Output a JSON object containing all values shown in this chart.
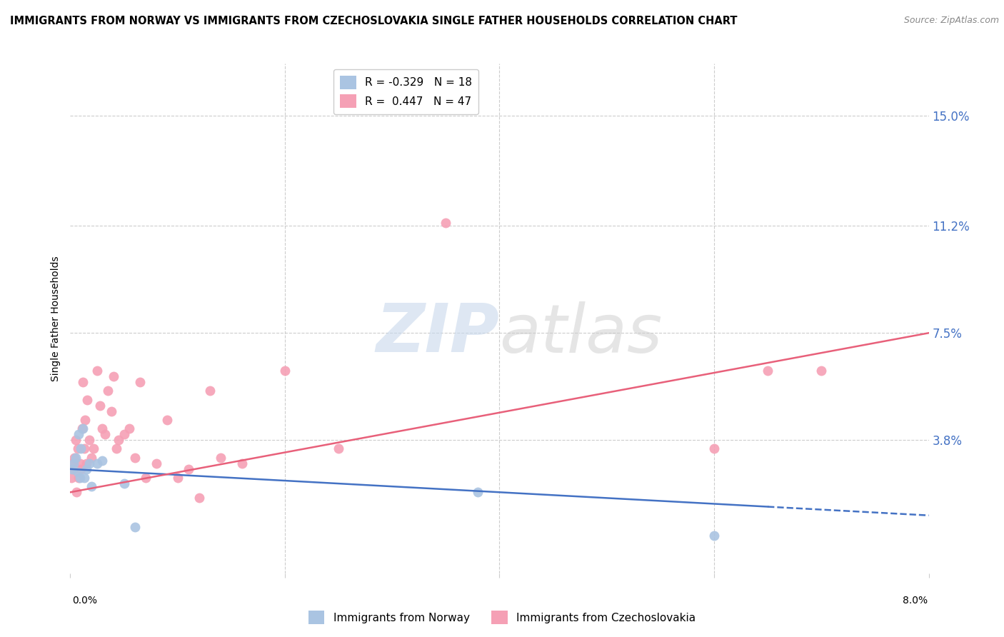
{
  "title": "IMMIGRANTS FROM NORWAY VS IMMIGRANTS FROM CZECHOSLOVAKIA SINGLE FATHER HOUSEHOLDS CORRELATION CHART",
  "source": "Source: ZipAtlas.com",
  "ylabel": "Single Father Households",
  "ytick_labels": [
    "15.0%",
    "11.2%",
    "7.5%",
    "3.8%"
  ],
  "ytick_values": [
    0.15,
    0.112,
    0.075,
    0.038
  ],
  "xlim": [
    0.0,
    0.08
  ],
  "ylim": [
    -0.008,
    0.168
  ],
  "norway_R": -0.329,
  "norway_N": 18,
  "czech_R": 0.447,
  "czech_N": 47,
  "norway_color": "#aac4e2",
  "czech_color": "#f5a0b5",
  "norway_line_color": "#4472c4",
  "czech_line_color": "#e8607a",
  "norway_x": [
    0.0002,
    0.0003,
    0.0005,
    0.0007,
    0.0008,
    0.0009,
    0.001,
    0.0012,
    0.0013,
    0.0015,
    0.0018,
    0.002,
    0.0025,
    0.003,
    0.005,
    0.006,
    0.038,
    0.06
  ],
  "norway_y": [
    0.028,
    0.03,
    0.032,
    0.027,
    0.04,
    0.025,
    0.035,
    0.042,
    0.025,
    0.028,
    0.03,
    0.022,
    0.03,
    0.031,
    0.023,
    0.008,
    0.02,
    0.005
  ],
  "czech_x": [
    0.0001,
    0.0002,
    0.0003,
    0.0004,
    0.0005,
    0.0006,
    0.0007,
    0.0008,
    0.0009,
    0.001,
    0.0011,
    0.0012,
    0.0013,
    0.0014,
    0.0015,
    0.0016,
    0.0018,
    0.002,
    0.0022,
    0.0025,
    0.0028,
    0.003,
    0.0032,
    0.0035,
    0.0038,
    0.004,
    0.0043,
    0.0045,
    0.005,
    0.0055,
    0.006,
    0.0065,
    0.007,
    0.008,
    0.009,
    0.01,
    0.011,
    0.012,
    0.013,
    0.014,
    0.016,
    0.02,
    0.025,
    0.035,
    0.06,
    0.065,
    0.07
  ],
  "czech_y": [
    0.025,
    0.03,
    0.028,
    0.032,
    0.038,
    0.02,
    0.035,
    0.025,
    0.03,
    0.028,
    0.042,
    0.058,
    0.035,
    0.045,
    0.03,
    0.052,
    0.038,
    0.032,
    0.035,
    0.062,
    0.05,
    0.042,
    0.04,
    0.055,
    0.048,
    0.06,
    0.035,
    0.038,
    0.04,
    0.042,
    0.032,
    0.058,
    0.025,
    0.03,
    0.045,
    0.025,
    0.028,
    0.018,
    0.055,
    0.032,
    0.03,
    0.062,
    0.035,
    0.113,
    0.035,
    0.062,
    0.062
  ],
  "marker_size": 100,
  "grid_color": "#cccccc",
  "background_color": "#ffffff",
  "title_fontsize": 10.5,
  "axis_label_fontsize": 10,
  "norway_line_x": [
    0.0,
    0.08
  ],
  "norway_line_y": [
    0.028,
    0.012
  ],
  "czech_line_x": [
    0.0,
    0.08
  ],
  "czech_line_y": [
    0.02,
    0.075
  ]
}
